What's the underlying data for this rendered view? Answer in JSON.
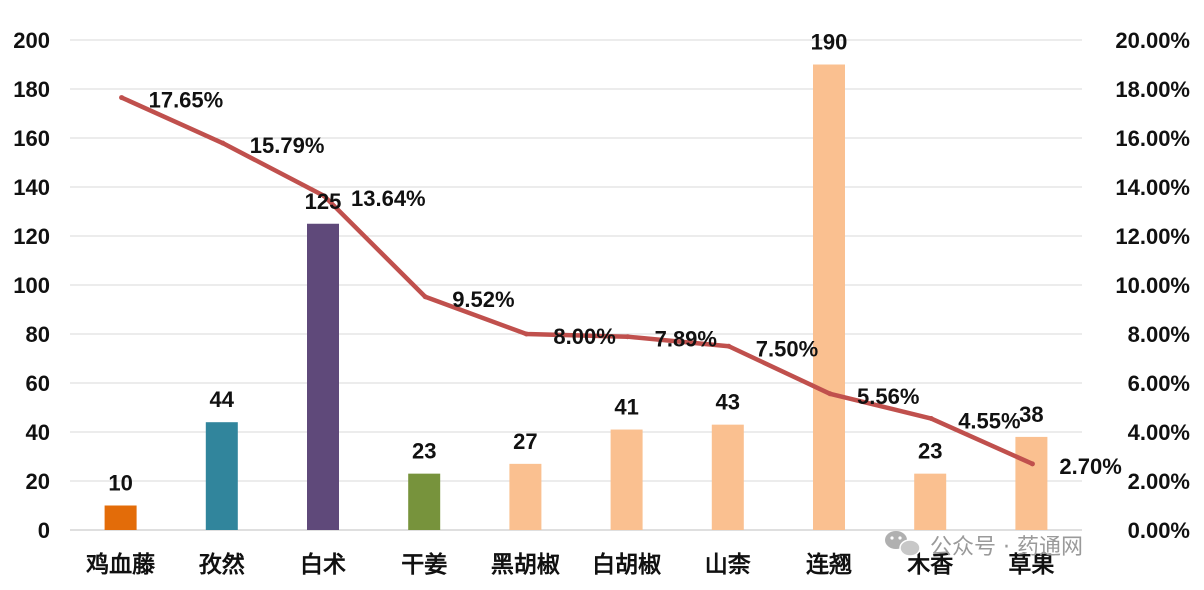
{
  "chart_data": {
    "type": "bar",
    "categories": [
      "鸡血藤",
      "孜然",
      "白术",
      "干姜",
      "黑胡椒",
      "白胡椒",
      "山柰",
      "连翘",
      "木香",
      "草果"
    ],
    "series": [
      {
        "values": [
          10,
          44,
          125,
          23,
          27,
          41,
          43,
          190,
          23,
          38
        ],
        "colors": [
          "#E36C09",
          "#31859C",
          "#5F497A",
          "#77933C",
          "#FAC090",
          "#FAC090",
          "#FAC090",
          "#FAC090",
          "#FAC090",
          "#FAC090"
        ],
        "labels": [
          "10",
          "44",
          "125",
          "23",
          "27",
          "41",
          "43",
          "190",
          "23",
          "38"
        ]
      },
      {
        "type": "line",
        "axis": "right",
        "color": "#C0504D",
        "values": [
          17.65,
          15.79,
          13.64,
          9.52,
          8.0,
          7.89,
          7.5,
          5.56,
          4.55,
          2.7
        ],
        "labels": [
          "17.65%",
          "15.79%",
          "13.64%",
          "9.52%",
          "8.00%",
          "7.89%",
          "7.50%",
          "5.56%",
          "4.55%",
          "2.70%"
        ]
      }
    ],
    "ylim": [
      0,
      200
    ],
    "yticks": [
      "0",
      "20",
      "40",
      "60",
      "80",
      "100",
      "120",
      "140",
      "160",
      "180",
      "200"
    ],
    "y2lim": [
      0,
      20
    ],
    "y2ticks": [
      "0.00%",
      "2.00%",
      "4.00%",
      "6.00%",
      "8.00%",
      "10.00%",
      "12.00%",
      "14.00%",
      "16.00%",
      "18.00%",
      "20.00%"
    ],
    "grid": true,
    "legend": "none"
  },
  "watermark": {
    "text": "公众号 · 药通网",
    "icon": "wechat-icon"
  }
}
